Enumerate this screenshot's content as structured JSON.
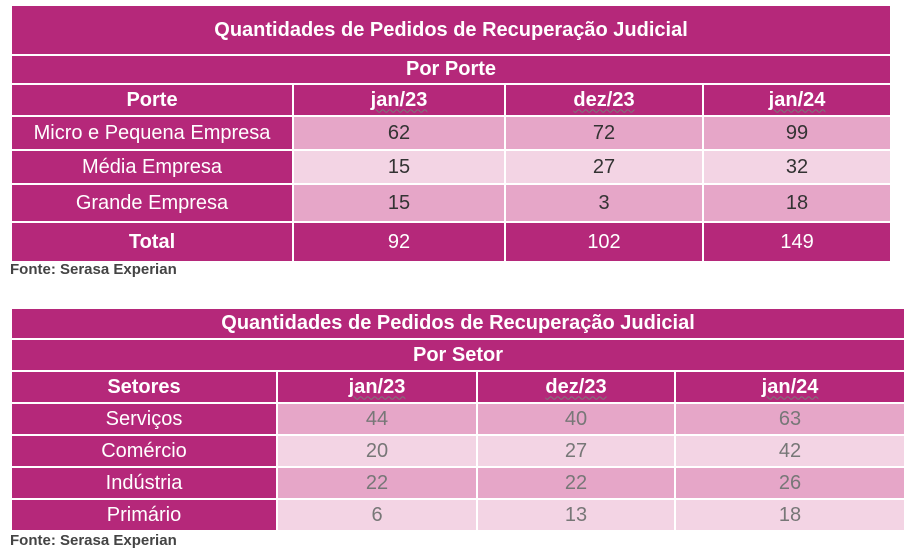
{
  "table1": {
    "title": "Quantidades de Pedidos de Recuperação Judicial",
    "subtitle": "Por Porte",
    "headers": [
      "Porte",
      "jan/23",
      "dez/23",
      "jan/24"
    ],
    "rows": [
      {
        "label": "Micro e Pequena Empresa",
        "values": [
          "62",
          "72",
          "99"
        ]
      },
      {
        "label": "Média Empresa",
        "values": [
          "15",
          "27",
          "32"
        ]
      },
      {
        "label": "Grande Empresa",
        "values": [
          "15",
          "3",
          "18"
        ]
      }
    ],
    "total": {
      "label": "Total",
      "values": [
        "92",
        "102",
        "149"
      ]
    },
    "source": "Fonte: Serasa Experian"
  },
  "table2": {
    "title": "Quantidades de Pedidos de Recuperação Judicial",
    "subtitle": "Por Setor",
    "headers": [
      "Setores",
      "jan/23",
      "dez/23",
      "jan/24"
    ],
    "rows": [
      {
        "label": "Serviços",
        "values": [
          "44",
          "40",
          "63"
        ]
      },
      {
        "label": "Comércio",
        "values": [
          "20",
          "27",
          "42"
        ]
      },
      {
        "label": "Indústria",
        "values": [
          "22",
          "22",
          "26"
        ]
      },
      {
        "label": "Primário",
        "values": [
          "6",
          "13",
          "18"
        ]
      }
    ],
    "source": "Fonte: Serasa Experian"
  }
}
